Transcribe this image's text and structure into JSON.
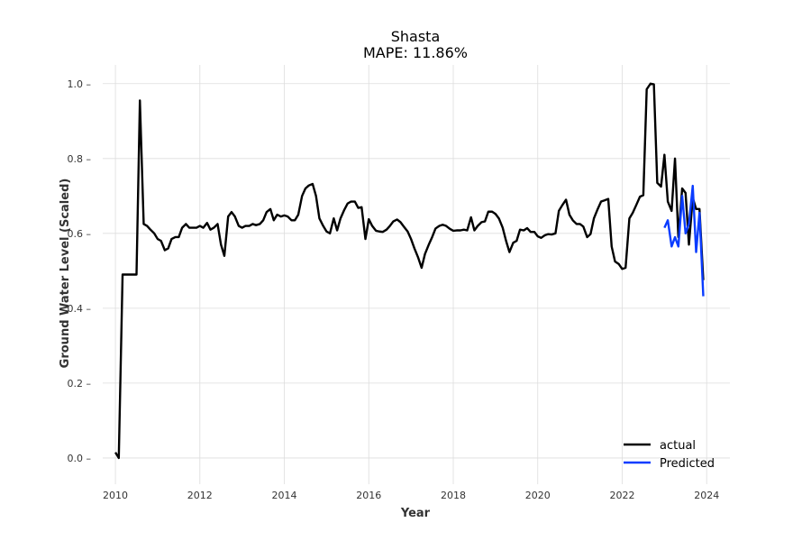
{
  "chart_data": {
    "type": "line",
    "title": "Shasta",
    "subtitle": "MAPE: 11.86%",
    "xlabel": "Year",
    "ylabel": "Ground Water Level (Scaled)",
    "xlim": [
      2009.7,
      2024.55
    ],
    "ylim": [
      -0.07,
      1.05
    ],
    "x_ticks": [
      2010,
      2012,
      2014,
      2016,
      2018,
      2020,
      2022,
      2024
    ],
    "y_ticks": [
      0.0,
      0.2,
      0.4,
      0.6,
      0.8,
      1.0
    ],
    "y_tick_labels": [
      "0.0",
      "0.2",
      "0.4",
      "0.6",
      "0.8",
      "1.0"
    ],
    "grid": true,
    "legend_position": "bottom-right",
    "series": [
      {
        "name": "actual",
        "color": "#000000",
        "points": [
          [
            2010.0,
            0.015
          ],
          [
            2010.08,
            0.0
          ],
          [
            2010.17,
            0.49
          ],
          [
            2010.25,
            0.49
          ],
          [
            2010.33,
            0.49
          ],
          [
            2010.42,
            0.49
          ],
          [
            2010.5,
            0.49
          ],
          [
            2010.58,
            0.955
          ],
          [
            2010.67,
            0.625
          ],
          [
            2010.75,
            0.62
          ],
          [
            2010.83,
            0.61
          ],
          [
            2010.92,
            0.6
          ],
          [
            2011.0,
            0.585
          ],
          [
            2011.08,
            0.58
          ],
          [
            2011.17,
            0.555
          ],
          [
            2011.25,
            0.56
          ],
          [
            2011.33,
            0.585
          ],
          [
            2011.42,
            0.59
          ],
          [
            2011.5,
            0.59
          ],
          [
            2011.58,
            0.615
          ],
          [
            2011.67,
            0.625
          ],
          [
            2011.75,
            0.615
          ],
          [
            2011.83,
            0.615
          ],
          [
            2011.92,
            0.615
          ],
          [
            2012.0,
            0.62
          ],
          [
            2012.08,
            0.615
          ],
          [
            2012.17,
            0.628
          ],
          [
            2012.25,
            0.61
          ],
          [
            2012.33,
            0.615
          ],
          [
            2012.42,
            0.625
          ],
          [
            2012.5,
            0.57
          ],
          [
            2012.58,
            0.54
          ],
          [
            2012.67,
            0.645
          ],
          [
            2012.75,
            0.657
          ],
          [
            2012.83,
            0.645
          ],
          [
            2012.92,
            0.62
          ],
          [
            2013.0,
            0.615
          ],
          [
            2013.08,
            0.62
          ],
          [
            2013.17,
            0.62
          ],
          [
            2013.25,
            0.625
          ],
          [
            2013.33,
            0.622
          ],
          [
            2013.42,
            0.625
          ],
          [
            2013.5,
            0.635
          ],
          [
            2013.58,
            0.657
          ],
          [
            2013.67,
            0.665
          ],
          [
            2013.75,
            0.635
          ],
          [
            2013.83,
            0.65
          ],
          [
            2013.92,
            0.645
          ],
          [
            2014.0,
            0.648
          ],
          [
            2014.08,
            0.645
          ],
          [
            2014.17,
            0.635
          ],
          [
            2014.25,
            0.635
          ],
          [
            2014.33,
            0.65
          ],
          [
            2014.42,
            0.7
          ],
          [
            2014.5,
            0.72
          ],
          [
            2014.58,
            0.728
          ],
          [
            2014.67,
            0.732
          ],
          [
            2014.75,
            0.7
          ],
          [
            2014.83,
            0.64
          ],
          [
            2014.92,
            0.62
          ],
          [
            2015.0,
            0.605
          ],
          [
            2015.08,
            0.6
          ],
          [
            2015.17,
            0.64
          ],
          [
            2015.25,
            0.608
          ],
          [
            2015.33,
            0.64
          ],
          [
            2015.42,
            0.663
          ],
          [
            2015.5,
            0.68
          ],
          [
            2015.58,
            0.685
          ],
          [
            2015.67,
            0.685
          ],
          [
            2015.75,
            0.668
          ],
          [
            2015.83,
            0.67
          ],
          [
            2015.92,
            0.585
          ],
          [
            2016.0,
            0.638
          ],
          [
            2016.08,
            0.62
          ],
          [
            2016.17,
            0.607
          ],
          [
            2016.25,
            0.605
          ],
          [
            2016.33,
            0.604
          ],
          [
            2016.42,
            0.61
          ],
          [
            2016.5,
            0.62
          ],
          [
            2016.58,
            0.632
          ],
          [
            2016.67,
            0.637
          ],
          [
            2016.75,
            0.63
          ],
          [
            2016.83,
            0.618
          ],
          [
            2016.92,
            0.605
          ],
          [
            2017.0,
            0.585
          ],
          [
            2017.08,
            0.56
          ],
          [
            2017.17,
            0.535
          ],
          [
            2017.25,
            0.508
          ],
          [
            2017.33,
            0.545
          ],
          [
            2017.42,
            0.57
          ],
          [
            2017.5,
            0.59
          ],
          [
            2017.58,
            0.613
          ],
          [
            2017.67,
            0.62
          ],
          [
            2017.75,
            0.623
          ],
          [
            2017.83,
            0.62
          ],
          [
            2017.92,
            0.612
          ],
          [
            2018.0,
            0.607
          ],
          [
            2018.08,
            0.608
          ],
          [
            2018.17,
            0.608
          ],
          [
            2018.25,
            0.61
          ],
          [
            2018.33,
            0.608
          ],
          [
            2018.42,
            0.643
          ],
          [
            2018.5,
            0.608
          ],
          [
            2018.58,
            0.62
          ],
          [
            2018.67,
            0.63
          ],
          [
            2018.75,
            0.632
          ],
          [
            2018.83,
            0.658
          ],
          [
            2018.92,
            0.658
          ],
          [
            2019.0,
            0.652
          ],
          [
            2019.08,
            0.64
          ],
          [
            2019.17,
            0.615
          ],
          [
            2019.25,
            0.58
          ],
          [
            2019.33,
            0.55
          ],
          [
            2019.42,
            0.575
          ],
          [
            2019.5,
            0.58
          ],
          [
            2019.58,
            0.61
          ],
          [
            2019.67,
            0.608
          ],
          [
            2019.75,
            0.614
          ],
          [
            2019.83,
            0.604
          ],
          [
            2019.92,
            0.604
          ],
          [
            2020.0,
            0.592
          ],
          [
            2020.08,
            0.588
          ],
          [
            2020.17,
            0.595
          ],
          [
            2020.25,
            0.598
          ],
          [
            2020.33,
            0.597
          ],
          [
            2020.42,
            0.6
          ],
          [
            2020.5,
            0.66
          ],
          [
            2020.58,
            0.675
          ],
          [
            2020.67,
            0.69
          ],
          [
            2020.75,
            0.65
          ],
          [
            2020.83,
            0.635
          ],
          [
            2020.92,
            0.625
          ],
          [
            2021.0,
            0.625
          ],
          [
            2021.08,
            0.618
          ],
          [
            2021.17,
            0.59
          ],
          [
            2021.25,
            0.598
          ],
          [
            2021.33,
            0.64
          ],
          [
            2021.42,
            0.665
          ],
          [
            2021.5,
            0.685
          ],
          [
            2021.58,
            0.688
          ],
          [
            2021.67,
            0.692
          ],
          [
            2021.75,
            0.565
          ],
          [
            2021.83,
            0.525
          ],
          [
            2021.92,
            0.518
          ],
          [
            2022.0,
            0.505
          ],
          [
            2022.08,
            0.508
          ],
          [
            2022.17,
            0.64
          ],
          [
            2022.25,
            0.655
          ],
          [
            2022.33,
            0.675
          ],
          [
            2022.42,
            0.698
          ],
          [
            2022.5,
            0.702
          ],
          [
            2022.58,
            0.985
          ],
          [
            2022.67,
            1.0
          ],
          [
            2022.75,
            0.998
          ],
          [
            2022.83,
            0.735
          ],
          [
            2022.92,
            0.725
          ],
          [
            2023.0,
            0.81
          ],
          [
            2023.08,
            0.685
          ],
          [
            2023.17,
            0.66
          ],
          [
            2023.25,
            0.8
          ],
          [
            2023.33,
            0.59
          ],
          [
            2023.42,
            0.72
          ],
          [
            2023.5,
            0.708
          ],
          [
            2023.58,
            0.57
          ],
          [
            2023.67,
            0.695
          ],
          [
            2023.75,
            0.665
          ],
          [
            2023.83,
            0.665
          ],
          [
            2023.92,
            0.475
          ]
        ]
      },
      {
        "name": "Predicted",
        "color": "#0a3cff",
        "points": [
          [
            2023.0,
            0.615
          ],
          [
            2023.08,
            0.635
          ],
          [
            2023.17,
            0.565
          ],
          [
            2023.25,
            0.59
          ],
          [
            2023.33,
            0.565
          ],
          [
            2023.42,
            0.7
          ],
          [
            2023.5,
            0.6
          ],
          [
            2023.58,
            0.625
          ],
          [
            2023.67,
            0.727
          ],
          [
            2023.75,
            0.55
          ],
          [
            2023.83,
            0.655
          ],
          [
            2023.92,
            0.432
          ]
        ]
      }
    ]
  }
}
